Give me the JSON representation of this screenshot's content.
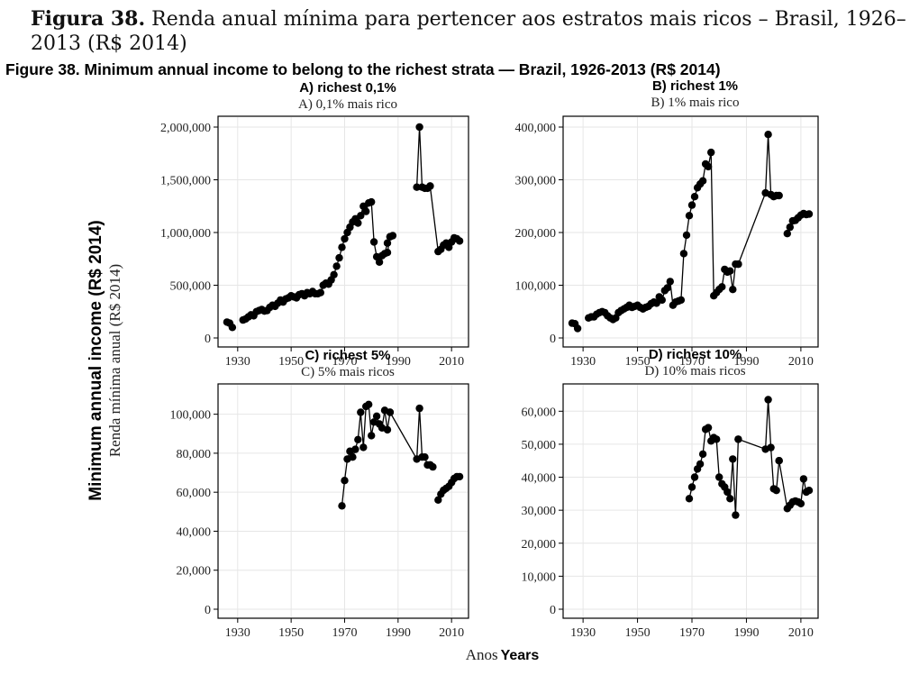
{
  "figure_title": {
    "pt_bold": "Figura 38.",
    "pt_text": "Renda anual mínima para pertencer aos estratos mais ricos – Brasil, 1926–2013 (R$ 2014)",
    "en": "Figure 38. Minimum annual income to belong to the richest strata — Brazil, 1926-2013 (R$ 2014)"
  },
  "axis_labels": {
    "y_en": "Minimum annual income (R$ 2014)",
    "y_pt": "Renda mínima anual (R$ 2014)",
    "x_pt": "Anos",
    "x_en": "Years"
  },
  "style": {
    "line_color": "#000000",
    "point_color": "#000000",
    "grid_color": "#e6e6e6"
  },
  "chart_data": [
    {
      "type": "line",
      "title_en": "A) richest 0,1%",
      "title_pt": "A) 0,1% mais rico",
      "xlim": [
        1924,
        2015
      ],
      "ylim": [
        0,
        2000000
      ],
      "y_ticks": [
        0,
        500000,
        1000000,
        1500000,
        2000000
      ],
      "y_tick_labels": [
        "0",
        "500,000",
        "1,000,000",
        "1,500,000",
        "2,000,000"
      ],
      "x_ticks": [
        1930,
        1950,
        1970,
        1990,
        2010
      ],
      "segments": [
        {
          "x": [
            1926,
            1927,
            1928
          ],
          "y": [
            150000,
            140000,
            100000
          ]
        },
        {
          "x": [
            1932,
            1933,
            1934,
            1935,
            1936,
            1937,
            1938,
            1939,
            1940,
            1941,
            1942,
            1943,
            1944,
            1945,
            1946,
            1947,
            1948,
            1949,
            1950,
            1951,
            1952,
            1953,
            1954,
            1955,
            1956,
            1957,
            1958,
            1959,
            1960,
            1961,
            1962,
            1963,
            1964,
            1965,
            1966,
            1967,
            1968,
            1969,
            1970,
            1971,
            1972,
            1973,
            1974,
            1975,
            1976,
            1977,
            1978,
            1979,
            1980,
            1981,
            1982,
            1983,
            1984,
            1985,
            1986,
            1987
          ],
          "y": [
            170000,
            180000,
            200000,
            220000,
            210000,
            250000,
            260000,
            270000,
            255000,
            260000,
            290000,
            310000,
            300000,
            330000,
            360000,
            340000,
            370000,
            380000,
            400000,
            390000,
            380000,
            410000,
            420000,
            400000,
            430000,
            420000,
            440000,
            420000,
            420000,
            430000,
            500000,
            520000,
            510000,
            550000,
            600000,
            680000,
            760000,
            860000,
            940000,
            1000000,
            1050000,
            1100000,
            1130000,
            1090000,
            1160000,
            1250000,
            1200000,
            1280000,
            1290000,
            910000,
            770000,
            720000,
            780000,
            800000,
            900000,
            960000
          ]
        },
        {
          "x": [
            1986,
            1987,
            1988
          ],
          "y": [
            810000,
            960000,
            970000
          ]
        },
        {
          "x": [
            1997,
            1998,
            1999,
            2000,
            2001,
            2002
          ],
          "y": [
            1430000,
            2000000,
            1430000,
            1420000,
            1420000,
            1440000
          ]
        },
        {
          "x": [
            2002,
            2005,
            2006,
            2007,
            2008,
            2009,
            2010,
            2011,
            2012,
            2013
          ],
          "y": [
            1440000,
            820000,
            840000,
            880000,
            900000,
            860000,
            910000,
            950000,
            940000,
            920000
          ]
        }
      ]
    },
    {
      "type": "line",
      "title_en": "B) richest 1%",
      "title_pt": "B) 1% mais rico",
      "xlim": [
        1924,
        2015
      ],
      "ylim": [
        0,
        400000
      ],
      "y_ticks": [
        0,
        100000,
        200000,
        300000,
        400000
      ],
      "y_tick_labels": [
        "0",
        "100,000",
        "200,000",
        "300,000",
        "400,000"
      ],
      "x_ticks": [
        1930,
        1950,
        1970,
        1990,
        2010
      ],
      "segments": [
        {
          "x": [
            1926,
            1927,
            1928
          ],
          "y": [
            28000,
            27000,
            18000
          ]
        },
        {
          "x": [
            1932,
            1933,
            1934,
            1935,
            1936,
            1937,
            1938,
            1939,
            1940,
            1941,
            1942,
            1943,
            1944,
            1945,
            1946,
            1947,
            1948,
            1949,
            1950,
            1951,
            1952,
            1953,
            1954,
            1955,
            1956,
            1957,
            1958,
            1959,
            1960,
            1961,
            1962,
            1963,
            1964,
            1965,
            1966,
            1967,
            1968,
            1969,
            1970,
            1971,
            1972,
            1973,
            1974,
            1975,
            1976,
            1977,
            1978,
            1979,
            1980,
            1981,
            1982,
            1983,
            1984,
            1985,
            1986,
            1987
          ],
          "y": [
            38000,
            40000,
            40000,
            45000,
            48000,
            50000,
            48000,
            42000,
            38000,
            35000,
            38000,
            48000,
            52000,
            55000,
            58000,
            62000,
            58000,
            60000,
            62000,
            58000,
            55000,
            58000,
            60000,
            65000,
            68000,
            66000,
            78000,
            72000,
            90000,
            95000,
            107000,
            62000,
            68000,
            70000,
            72000,
            160000,
            195000,
            232000,
            252000,
            268000,
            285000,
            292000,
            298000,
            330000,
            325000,
            352000,
            80000,
            86000,
            92000,
            97000,
            130000,
            125000,
            127000,
            92000,
            140000,
            140000
          ]
        },
        {
          "x": [
            1987,
            1997,
            1998,
            1999,
            2000,
            2001,
            2002
          ],
          "y": [
            140000,
            275000,
            386000,
            272000,
            268000,
            270000,
            270000
          ]
        },
        {
          "x": [
            2005,
            2006,
            2007,
            2008,
            2009,
            2010,
            2011,
            2012,
            2013
          ],
          "y": [
            198000,
            210000,
            222000,
            223000,
            228000,
            233000,
            236000,
            234000,
            235000
          ]
        }
      ]
    },
    {
      "type": "line",
      "title_en": "C) richest 5%",
      "title_pt": "C) 5% mais ricos",
      "xlim": [
        1924,
        2015
      ],
      "ylim": [
        0,
        110000
      ],
      "y_ticks": [
        0,
        20000,
        40000,
        60000,
        80000,
        100000
      ],
      "y_tick_labels": [
        "0",
        "20,000",
        "40,000",
        "60,000",
        "80,000",
        "100,000"
      ],
      "x_ticks": [
        1930,
        1950,
        1970,
        1990,
        2010
      ],
      "segments": [
        {
          "x": [
            1969,
            1970,
            1971,
            1972,
            1973,
            1974,
            1975,
            1976,
            1977,
            1978,
            1979,
            1980,
            1981,
            1982,
            1983,
            1984,
            1985,
            1986,
            1987
          ],
          "y": [
            53000,
            66000,
            77000,
            81000,
            78000,
            82000,
            87000,
            101000,
            83000,
            104000,
            105000,
            89000,
            96000,
            99000,
            95000,
            93000,
            102000,
            92000,
            101000
          ]
        },
        {
          "x": [
            1987,
            1997,
            1998,
            1999,
            2000,
            2001,
            2002
          ],
          "y": [
            101000,
            77000,
            103000,
            78000,
            78000,
            74000,
            74000
          ]
        },
        {
          "x": [
            2002,
            2003
          ],
          "y": [
            74000,
            73000
          ]
        },
        {
          "x": [
            2005,
            2006,
            2007,
            2008,
            2009,
            2010,
            2011,
            2012,
            2013
          ],
          "y": [
            56000,
            59000,
            61000,
            62000,
            63000,
            65000,
            67000,
            68000,
            68000
          ]
        }
      ]
    },
    {
      "type": "line",
      "title_en": "D) richest 10%",
      "title_pt": "D) 10% mais ricos",
      "xlim": [
        1924,
        2015
      ],
      "ylim": [
        0,
        65000
      ],
      "y_ticks": [
        0,
        10000,
        20000,
        30000,
        40000,
        50000,
        60000
      ],
      "y_tick_labels": [
        "0",
        "10,000",
        "20,000",
        "30,000",
        "40,000",
        "50,000",
        "60,000"
      ],
      "x_ticks": [
        1930,
        1950,
        1970,
        1990,
        2010
      ],
      "segments": [
        {
          "x": [
            1969,
            1970,
            1971,
            1972,
            1973,
            1974,
            1975,
            1976,
            1977,
            1978,
            1979,
            1980,
            1981,
            1982,
            1983,
            1984,
            1985,
            1986,
            1987
          ],
          "y": [
            33500,
            37000,
            40000,
            42500,
            44000,
            47000,
            54500,
            55000,
            51000,
            52000,
            51500,
            40000,
            38000,
            37000,
            35500,
            33500,
            45500,
            28500,
            51500
          ]
        },
        {
          "x": [
            1987,
            1997,
            1998,
            1999,
            2000,
            2001,
            2002
          ],
          "y": [
            51500,
            48500,
            63500,
            49000,
            36500,
            36000,
            45000
          ]
        },
        {
          "x": [
            2002,
            2005,
            2006,
            2007,
            2008,
            2009,
            2010,
            2011,
            2012,
            2013
          ],
          "y": [
            45000,
            30500,
            31500,
            32500,
            32800,
            32500,
            32000,
            39500,
            35500,
            36000
          ]
        }
      ]
    }
  ]
}
